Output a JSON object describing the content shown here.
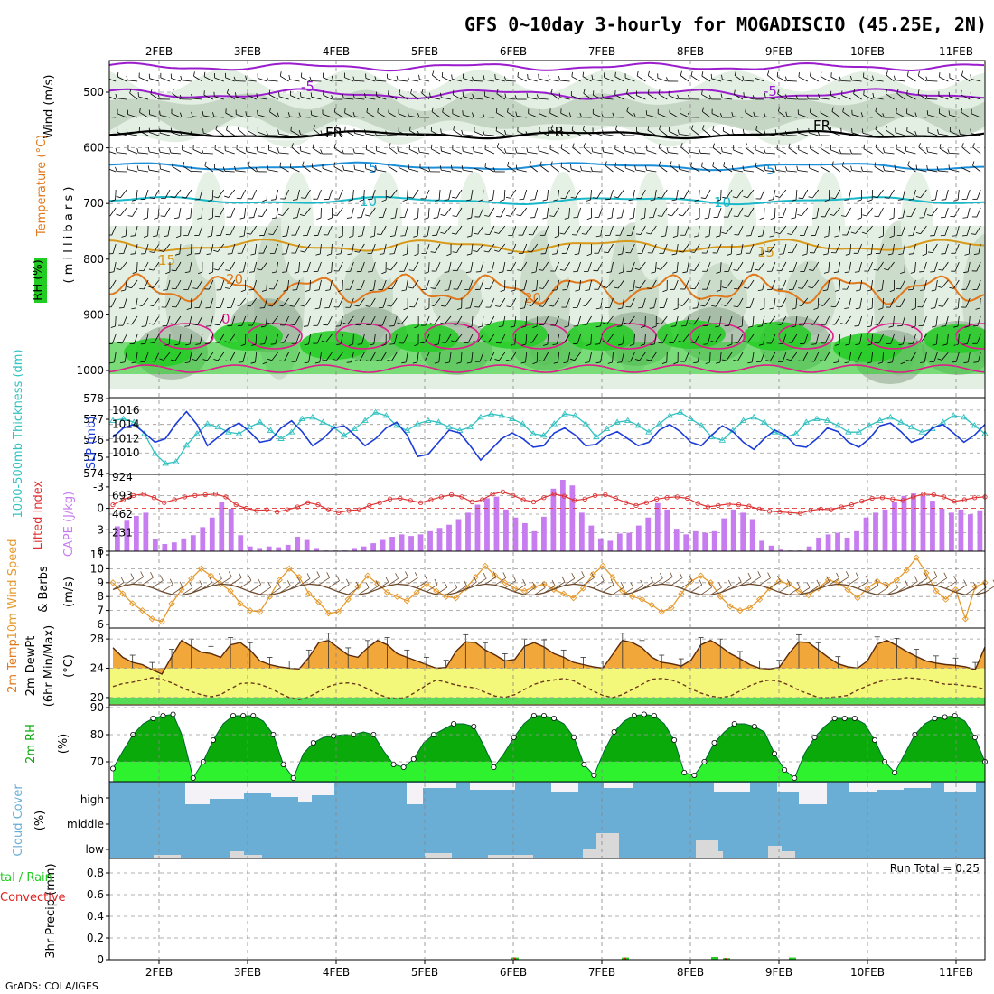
{
  "title": "GFS 0~10day 3-hourly for MOGADISCIO (45.25E, 2N)",
  "credit": "GrADS: COLA/IGES",
  "run_total": "Run Total = 0.25",
  "dates": [
    "2FEB",
    "3FEB",
    "4FEB",
    "5FEB",
    "6FEB",
    "7FEB",
    "8FEB",
    "9FEB",
    "10FEB",
    "11FEB"
  ],
  "colors": {
    "rh_light": "#e3efe3",
    "rh_mid": "#b8ccb8",
    "rh_dark": "#8fa88f",
    "rh_green": "#22cc22",
    "temp_m5": "#9a1ccc",
    "temp_fr": "#000000",
    "temp_5": "#1c8fd8",
    "temp_10": "#19b8c8",
    "temp_15": "#d89a1c",
    "temp_20": "#e0781c",
    "temp_warm": "#e01c8c",
    "slp": "#1c3cd8",
    "thickness": "#33c1c1",
    "cape": "#c77cf0",
    "lifted": "#dd3333",
    "wind": "#e69a2e",
    "temp_fill": "#f2a73b",
    "dewpt_fill": "#f3f77a",
    "low_fill": "#55dd55",
    "rh_fill_dark": "#0aaa0a",
    "rh_fill_light": "#2ff22f",
    "cloud": "#6aaed6",
    "cloud_clear": "#f5f2f7",
    "cloud_low": "#d9d9d9",
    "rain": "#22cc22",
    "convective": "#dd2222"
  },
  "panels": {
    "upper_air": {
      "y_title": "Wind (m/s)",
      "y_title_temp": "Temperature (°C)",
      "y_title_rh": "RH (%)",
      "y_units": "( m i l l i b a r s )",
      "ticks": [
        "500",
        "600",
        "700",
        "800",
        "900",
        "1000"
      ],
      "isotherm_labels": [
        "-5",
        "FR",
        "5",
        "10",
        "15",
        "20",
        "0"
      ]
    },
    "slp_thickness": {
      "title_slp": "SLP (mb)",
      "title_thickness": "1000-500mb Thickness (dm)",
      "left_ticks": [
        "578",
        "577",
        "576",
        "575",
        "574"
      ],
      "right_ticks": [
        "1016",
        "1014",
        "1012",
        "1010"
      ]
    },
    "cape": {
      "title_lifted": "Lifted Index",
      "title_cape": "CAPE (J/kg)",
      "left_ticks": [
        "-3",
        "0",
        "3",
        "6"
      ],
      "right_ticks": [
        "924",
        "693",
        "462",
        "231"
      ]
    },
    "wind10": {
      "title": "10m Wind Speed",
      "title2": "& Barbs",
      "units": "(m/s)",
      "ticks": [
        "11",
        "10",
        "9",
        "8",
        "7",
        "6"
      ]
    },
    "temp2m": {
      "title": "2m Temp",
      "title2": "2m DewPt",
      "title3": "(6hr Min/Max)",
      "units": "(°C)",
      "ticks": [
        "28",
        "24",
        "20"
      ]
    },
    "rh2m": {
      "title": "2m RH",
      "units": "(%)",
      "ticks": [
        "90",
        "80",
        "70"
      ]
    },
    "cloud": {
      "title": "Cloud Cover",
      "units": "(%)",
      "levels": [
        "high",
        "middle",
        "low"
      ]
    },
    "precip": {
      "title": "3hr Precip (mm)",
      "title_total": "tal / Rain",
      "title_conv": "Convective",
      "ticks": [
        "0.8",
        "0.6",
        "0.4",
        "0.2",
        "0"
      ]
    }
  },
  "chart_data": [
    {
      "type": "line",
      "title": "1000-500mb Thickness (dm)",
      "ylim": [
        574,
        578
      ],
      "series": [
        {
          "name": "Thickness",
          "values": [
            577.1,
            577.2,
            577.0,
            576.3,
            575.1,
            574.5,
            574.6,
            575.6,
            576.3,
            576.9,
            576.7,
            576.4,
            576.3,
            576.7,
            577.0,
            576.5,
            576.0,
            576.4,
            577.2,
            577.3,
            577.0,
            576.7,
            576.2,
            576.6,
            577.1,
            577.6,
            577.4,
            576.8,
            576.5,
            576.9,
            577.1,
            577.0,
            576.7,
            576.5,
            576.7,
            577.3,
            577.5,
            577.4,
            577.2,
            576.9,
            576.3,
            576.2,
            576.9,
            577.5,
            577.4,
            576.9,
            576.1,
            576.6,
            577.0,
            577.1,
            576.8,
            576.4,
            576.9,
            577.4,
            577.6,
            577.2,
            576.8,
            576.1,
            575.9,
            576.5,
            577.1,
            577.3,
            577.0,
            576.4,
            576.1,
            576.3,
            577.0,
            577.2,
            577.1,
            576.8,
            576.4,
            576.4,
            576.8,
            577.1,
            577.3,
            577.0,
            576.7,
            576.4,
            576.6,
            577.0,
            577.4,
            577.3,
            576.8,
            576.3
          ]
        }
      ]
    },
    {
      "type": "line",
      "title": "SLP (mb)",
      "ylim": [
        1008,
        1017
      ],
      "series": [
        {
          "name": "SLP",
          "values": [
            1012.2,
            1013.5,
            1014.0,
            1012.8,
            1011.5,
            1012.0,
            1014.1,
            1015.8,
            1014.0,
            1011.0,
            1012.2,
            1013.4,
            1014.2,
            1013.0,
            1011.5,
            1011.8,
            1013.5,
            1014.5,
            1013.0,
            1011.0,
            1012.0,
            1013.5,
            1013.8,
            1012.5,
            1011.0,
            1012.0,
            1013.5,
            1014.3,
            1012.5,
            1009.5,
            1009.8,
            1011.5,
            1013.2,
            1012.8,
            1011.0,
            1009.0,
            1010.5,
            1012.0,
            1012.8,
            1012.0,
            1010.8,
            1011.0,
            1012.8,
            1013.5,
            1012.5,
            1011.0,
            1011.2,
            1012.4,
            1013.0,
            1012.0,
            1011.0,
            1011.5,
            1013.2,
            1014.0,
            1013.0,
            1011.5,
            1011.0,
            1012.5,
            1013.8,
            1013.0,
            1011.5,
            1010.5,
            1012.0,
            1013.2,
            1012.5,
            1011.0,
            1010.8,
            1012.0,
            1013.5,
            1013.0,
            1011.5,
            1010.8,
            1012.0,
            1013.8,
            1014.2,
            1013.0,
            1011.5,
            1012.0,
            1013.5,
            1014.0,
            1012.8,
            1011.5,
            1012.5,
            1014.0
          ]
        }
      ]
    },
    {
      "type": "bar",
      "title": "CAPE (J/kg)",
      "ylim": [
        0,
        924
      ],
      "series": [
        {
          "name": "CAPE",
          "values": [
            310,
            380,
            440,
            480,
            150,
            90,
            110,
            160,
            200,
            300,
            420,
            610,
            530,
            200,
            60,
            40,
            60,
            50,
            80,
            180,
            140,
            40,
            10,
            10,
            10,
            40,
            60,
            100,
            140,
            180,
            210,
            190,
            210,
            250,
            290,
            330,
            400,
            480,
            580,
            660,
            680,
            520,
            420,
            350,
            250,
            430,
            780,
            890,
            820,
            480,
            320,
            160,
            130,
            220,
            230,
            320,
            420,
            600,
            520,
            280,
            210,
            250,
            230,
            250,
            410,
            520,
            480,
            400,
            130,
            70,
            20,
            10,
            10,
            60,
            170,
            210,
            230,
            170,
            250,
            420,
            480,
            520,
            620,
            690,
            720,
            690,
            630,
            530,
            480,
            520,
            460,
            510
          ]
        }
      ]
    },
    {
      "type": "line",
      "title": "Lifted Index",
      "ylim": [
        -4.5,
        6
      ],
      "series": [
        {
          "name": "Lifted Index",
          "values": [
            -0.5,
            -1.2,
            -1.8,
            -2.0,
            -1.5,
            -0.8,
            -1.2,
            -1.6,
            -1.8,
            -1.9,
            -2.0,
            -1.6,
            -0.5,
            0.0,
            0.3,
            0.2,
            0.5,
            0.2,
            -0.2,
            -0.8,
            -0.5,
            0.2,
            0.6,
            0.3,
            0.2,
            -0.4,
            -0.8,
            -1.3,
            -1.4,
            -1.1,
            -0.8,
            -1.2,
            -1.6,
            -1.9,
            -1.6,
            -0.9,
            -1.2,
            -2.0,
            -2.3,
            -1.8,
            -1.2,
            -0.9,
            -1.5,
            -2.0,
            -1.7,
            -1.1,
            -1.3,
            -1.8,
            -1.9,
            -1.4,
            -0.8,
            -0.4,
            -0.8,
            -1.3,
            -1.5,
            -1.6,
            -1.4,
            -0.7,
            -0.2,
            -0.4,
            -0.6,
            -0.5,
            -0.3,
            0.1,
            0.4,
            0.5,
            0.6,
            0.7,
            0.3,
            0.1,
            0.2,
            -0.2,
            -0.5,
            -1.0,
            -1.4,
            -1.5,
            -1.3,
            -1.1,
            -1.6,
            -2.0,
            -1.9,
            -1.6,
            -1.0,
            -1.2,
            -1.5,
            -1.6
          ]
        }
      ]
    },
    {
      "type": "line",
      "title": "10m Wind Speed",
      "ylim": [
        6,
        11
      ],
      "series": [
        {
          "name": "10m Wind Speed",
          "values": [
            9.0,
            8.2,
            7.5,
            7.0,
            6.4,
            6.2,
            7.5,
            8.5,
            9.3,
            10.0,
            9.5,
            8.9,
            8.4,
            7.5,
            7.0,
            6.9,
            8.0,
            9.2,
            10.0,
            9.4,
            8.2,
            7.6,
            6.8,
            6.9,
            7.8,
            8.7,
            9.5,
            8.9,
            8.3,
            8.0,
            7.7,
            8.3,
            8.9,
            8.4,
            8.0,
            7.9,
            8.6,
            9.4,
            10.2,
            9.5,
            9.0,
            8.6,
            8.4,
            8.7,
            8.9,
            8.5,
            8.2,
            7.9,
            8.6,
            9.6,
            10.2,
            9.4,
            8.4,
            8.0,
            7.8,
            7.4,
            6.9,
            7.2,
            8.2,
            9.1,
            9.5,
            9.0,
            8.0,
            7.3,
            7.0,
            7.2,
            7.8,
            8.6,
            9.1,
            8.9,
            8.4,
            8.1,
            8.6,
            9.2,
            9.0,
            8.5,
            7.9,
            8.6,
            9.1,
            8.8,
            9.2,
            9.9,
            10.8,
            9.7,
            8.4,
            7.8,
            8.5,
            6.4,
            8.7,
            9.0
          ]
        }
      ]
    },
    {
      "type": "area",
      "title": "2m Temp",
      "ylim": [
        19,
        29
      ],
      "series": [
        {
          "name": "2m Temp",
          "values": [
            26.8,
            25.5,
            24.8,
            24.5,
            23.8,
            23.2,
            25.6,
            27.8,
            27.0,
            26.2,
            26.0,
            25.5,
            27.2,
            27.5,
            26.5,
            25.0,
            24.5,
            24.2,
            24.0,
            23.9,
            25.5,
            27.5,
            27.8,
            26.8,
            25.8,
            25.5,
            26.8,
            27.8,
            27.2,
            26.0,
            25.5,
            25.0,
            24.5,
            24.0,
            24.1,
            26.3,
            27.6,
            27.5,
            26.5,
            25.8,
            25.0,
            25.2,
            27.0,
            27.5,
            26.9,
            26.0,
            25.5,
            24.8,
            24.5,
            24.2,
            24.0,
            25.9,
            27.8,
            27.5,
            26.8,
            25.5,
            24.8,
            24.6,
            24.3,
            25.1,
            27.2,
            27.8,
            27.0,
            26.0,
            25.3,
            24.5,
            24.0,
            23.9,
            24.1,
            26.0,
            27.6,
            27.5,
            26.5,
            25.5,
            24.6,
            24.2,
            24.0,
            25.0,
            27.3,
            27.8,
            27.1,
            26.3,
            25.6,
            25.0,
            24.7,
            24.5,
            24.4,
            24.2,
            23.8,
            26.9
          ]
        },
        {
          "name": "2m DewPt",
          "values": [
            21.5,
            21.9,
            22.1,
            22.4,
            22.7,
            22.5,
            22.0,
            21.4,
            20.8,
            20.4,
            20.1,
            20.4,
            21.2,
            21.9,
            22.0,
            21.8,
            21.3,
            20.6,
            20.0,
            19.7,
            20.1,
            20.8,
            21.5,
            21.9,
            22.0,
            21.8,
            21.2,
            20.5,
            20.0,
            19.8,
            20.1,
            20.8,
            21.7,
            22.4,
            22.1,
            21.7,
            21.5,
            21.3,
            20.7,
            20.2,
            20.0,
            20.4,
            21.1,
            21.8,
            22.2,
            22.4,
            22.6,
            22.3,
            21.6,
            20.9,
            20.3,
            20.0,
            20.4,
            21.1,
            21.8,
            22.5,
            22.6,
            22.4,
            21.9,
            21.2,
            20.6,
            20.2,
            20.0,
            20.2,
            20.9,
            21.6,
            22.1,
            22.4,
            22.2,
            21.7,
            21.0,
            20.5,
            20.0,
            20.0,
            20.1,
            20.3,
            21.0,
            21.6,
            22.1,
            22.4,
            22.5,
            22.7,
            22.6,
            22.4,
            22.1,
            21.8,
            21.8,
            21.6,
            21.5,
            21.1
          ]
        }
      ]
    },
    {
      "type": "area",
      "title": "2m RH",
      "ylim": [
        63,
        90
      ],
      "series": [
        {
          "name": "2m RH",
          "values": [
            67.5,
            74,
            80,
            84,
            86,
            87,
            87.5,
            79,
            64,
            70,
            78,
            84,
            87,
            87,
            87,
            85,
            80,
            69,
            64,
            73,
            77,
            79,
            79.5,
            80,
            80,
            81,
            80,
            74,
            69,
            68,
            71,
            77,
            80,
            82,
            84,
            84,
            83,
            76,
            68,
            73,
            79,
            84,
            87,
            87,
            86,
            84,
            79,
            69,
            65,
            74,
            81,
            85,
            87,
            87.5,
            87,
            84,
            78,
            66,
            65,
            70,
            77,
            81,
            84,
            84,
            83,
            81,
            73,
            67,
            64,
            73,
            79,
            83,
            86,
            86,
            86,
            84,
            78,
            70,
            66,
            73,
            80,
            84,
            86,
            86.5,
            87,
            85,
            79,
            70
          ]
        }
      ]
    },
    {
      "type": "bar",
      "title": "3hr Precip (mm)",
      "ylim": [
        0,
        0.9
      ],
      "series": [
        {
          "name": "Rain",
          "values": [
            0.02,
            0.02,
            0.025,
            0.015,
            0.02
          ]
        },
        {
          "name": "Convective",
          "values": [
            0.02,
            0.02,
            0.0,
            0.015,
            0.0
          ]
        }
      ]
    }
  ]
}
